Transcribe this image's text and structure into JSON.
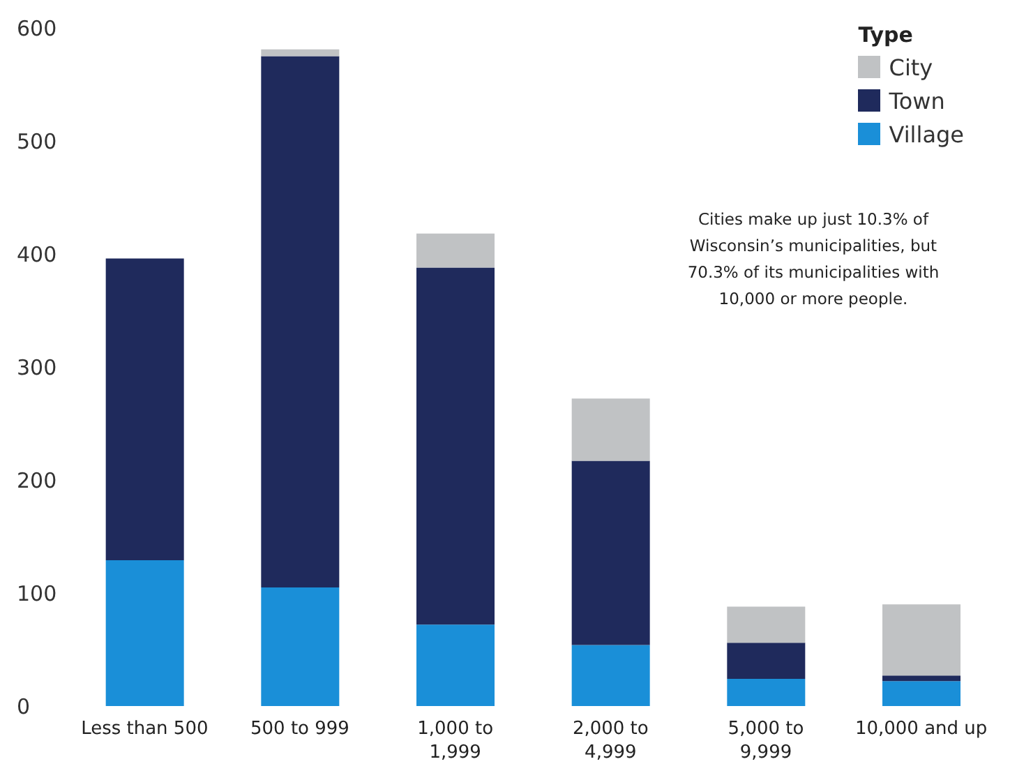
{
  "chart_data": {
    "type": "bar",
    "stacked": true,
    "legend_title": "Type",
    "legend": "top right",
    "grid": false,
    "categories": [
      "Less than 500",
      "500 to 999",
      "1,000 to 1,999",
      "2,000 to 4,999",
      "5,000 to 9,999",
      "10,000 and up"
    ],
    "series": [
      {
        "name": "Village",
        "color": "#1a8fd8",
        "values": [
          129,
          105,
          72,
          54,
          24,
          22
        ]
      },
      {
        "name": "Town",
        "color": "#1f2a5c",
        "values": [
          267,
          470,
          316,
          163,
          32,
          5
        ]
      },
      {
        "name": "City",
        "color": "#c0c2c4",
        "values": [
          0,
          6,
          30,
          55,
          32,
          63
        ]
      }
    ],
    "ylim": [
      0,
      600
    ],
    "yticks": [
      0,
      100,
      200,
      300,
      400,
      500,
      600
    ],
    "annotations": [
      "Cities make up just 10.3% of Wisconsin’s municipalities, but 70.3% of its municipalities with 10,000 or more people."
    ]
  }
}
